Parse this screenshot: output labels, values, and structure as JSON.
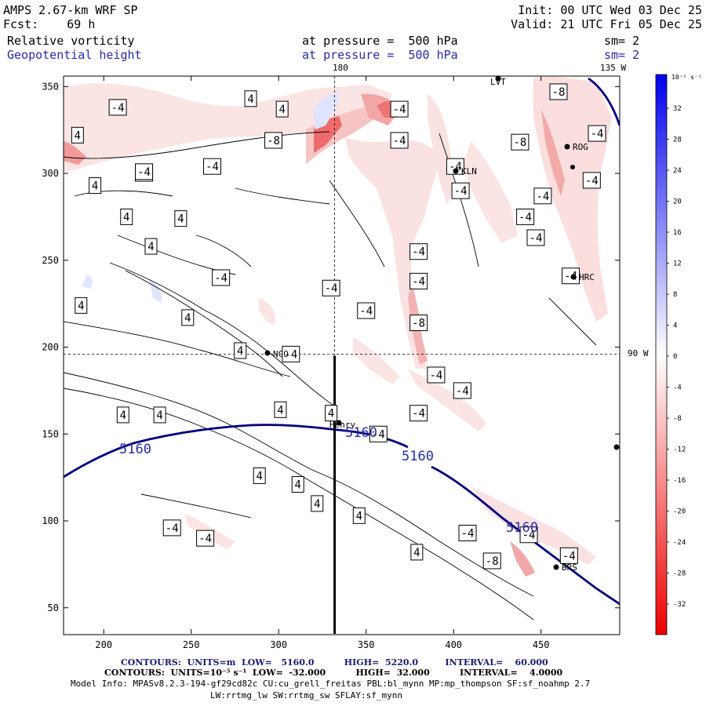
{
  "header": {
    "model": "AMPS 2.67-km WRF SP",
    "forecast": "Fcst:    69 h",
    "init": "Init: 00 UTC Wed 03 Dec 25",
    "valid": "Valid: 21 UTC Fri 05 Dec 25",
    "field1_name": "Relative vorticity",
    "field1_level": "at pressure =  500 hPa",
    "field1_sm": "sm= 2",
    "field2_name": "Geopotential height",
    "field2_level": "at pressure =  500 hPa",
    "field2_sm": "sm= 2"
  },
  "colors": {
    "height_contour": "#000080",
    "label_blue": "#2a2aa8",
    "vort_neg_light": "#fbe0e0",
    "vort_neg_mid": "#f5a8a8",
    "vort_neg_strong": "#ee5c5c",
    "vort_pos_light": "#dfe4ff"
  },
  "map_labels": {
    "lon_180": "180",
    "lon_135w": "135 W",
    "lon_90w": "90 W"
  },
  "stations": [
    {
      "name": "LVT"
    },
    {
      "name": "KLN"
    },
    {
      "name": "ROG"
    },
    {
      "name": "HRC"
    },
    {
      "name": "NCO"
    },
    {
      "name": "Henry"
    },
    {
      "name": "BRS"
    }
  ],
  "chart_data": {
    "type": "contour",
    "title": "Relative vorticity and Geopotential height at 500 hPa",
    "xaxis": {
      "ticks": [
        200,
        250,
        300,
        350,
        400,
        450
      ],
      "range": [
        177,
        495
      ]
    },
    "yaxis": {
      "ticks": [
        50,
        100,
        150,
        200,
        250,
        300,
        350
      ],
      "range": [
        35,
        356
      ]
    },
    "colorbar": {
      "units": "10⁻⁵ s⁻¹",
      "ticks": [
        "32",
        "28",
        "24",
        "20",
        "16",
        "12",
        "8",
        "4",
        "0",
        "-4",
        "-8",
        "-12",
        "-16",
        "-20",
        "-24",
        "-28",
        "-32"
      ]
    },
    "height_contour_labels": [
      "5160",
      "5160",
      "5160",
      "5160"
    ],
    "vorticity_contour_labels": [
      {
        "label": "-4",
        "x": 208,
        "y": 338
      },
      {
        "label": "4",
        "x": 185,
        "y": 322
      },
      {
        "label": "4",
        "x": 195,
        "y": 293
      },
      {
        "label": "-4",
        "x": 223,
        "y": 300
      },
      {
        "label": "4",
        "x": 284,
        "y": 343
      },
      {
        "label": "4",
        "x": 302,
        "y": 337
      },
      {
        "label": "-8",
        "x": 297,
        "y": 319
      },
      {
        "label": "-4",
        "x": 262,
        "y": 304
      },
      {
        "label": "-4",
        "x": 223,
        "y": 301
      },
      {
        "label": "-4",
        "x": 369,
        "y": 337
      },
      {
        "label": "-4",
        "x": 369,
        "y": 319
      },
      {
        "label": "-4",
        "x": 401,
        "y": 304
      },
      {
        "label": "-4",
        "x": 404,
        "y": 290
      },
      {
        "label": "4",
        "x": 213,
        "y": 275
      },
      {
        "label": "4",
        "x": 244,
        "y": 274
      },
      {
        "label": "4",
        "x": 227,
        "y": 258
      },
      {
        "label": "-4",
        "x": 267,
        "y": 240
      },
      {
        "label": "-4",
        "x": 380,
        "y": 255
      },
      {
        "label": "-4",
        "x": 380,
        "y": 238
      },
      {
        "label": "-4",
        "x": 330,
        "y": 234
      },
      {
        "label": "-4",
        "x": 350,
        "y": 221
      },
      {
        "label": "-8",
        "x": 380,
        "y": 214
      },
      {
        "label": "4",
        "x": 187,
        "y": 224
      },
      {
        "label": "4",
        "x": 248,
        "y": 217
      },
      {
        "label": "4",
        "x": 278,
        "y": 198
      },
      {
        "label": "-4",
        "x": 307,
        "y": 196
      },
      {
        "label": "-4",
        "x": 390,
        "y": 184
      },
      {
        "label": "-4",
        "x": 405,
        "y": 175
      },
      {
        "label": "-4",
        "x": 380,
        "y": 162
      },
      {
        "label": "4",
        "x": 301,
        "y": 164
      },
      {
        "label": "4",
        "x": 211,
        "y": 161
      },
      {
        "label": "4",
        "x": 232,
        "y": 161
      },
      {
        "label": "4",
        "x": 330,
        "y": 162
      },
      {
        "label": "-4",
        "x": 357,
        "y": 150
      },
      {
        "label": "4",
        "x": 289,
        "y": 126
      },
      {
        "label": "4",
        "x": 311,
        "y": 121
      },
      {
        "label": "4",
        "x": 322,
        "y": 110
      },
      {
        "label": "4",
        "x": 346,
        "y": 103
      },
      {
        "label": "4",
        "x": 379,
        "y": 82
      },
      {
        "label": "-4",
        "x": 239,
        "y": 96
      },
      {
        "label": "-4",
        "x": 258,
        "y": 90
      },
      {
        "label": "-4",
        "x": 408,
        "y": 93
      },
      {
        "label": "-8",
        "x": 422,
        "y": 77
      },
      {
        "label": "-4",
        "x": 443,
        "y": 92
      },
      {
        "label": "-4",
        "x": 466,
        "y": 80
      },
      {
        "label": "-4",
        "x": 479,
        "y": 296
      },
      {
        "label": "-4",
        "x": 451,
        "y": 287
      },
      {
        "label": "-4",
        "x": 441,
        "y": 275
      },
      {
        "label": "-4",
        "x": 447,
        "y": 263
      },
      {
        "label": "-4",
        "x": 467,
        "y": 241
      },
      {
        "label": "-8",
        "x": 460,
        "y": 347
      },
      {
        "label": "-8",
        "x": 438,
        "y": 318
      },
      {
        "label": "-4",
        "x": 482,
        "y": 323
      }
    ],
    "cross_section": {
      "x": 332,
      "y_from": 35,
      "y_to": 195
    },
    "reference_lines": {
      "x": 332,
      "y": 196
    }
  },
  "footer": {
    "contours_height": "CONTOURS:  UNITS=m  LOW=   5160.0          HIGH=  5220.0         INTERVAL=    60.000",
    "contours_vort": "CONTOURS:  UNITS=10⁻⁵ s⁻¹  LOW=  -32.000          HIGH=  32.000          INTERVAL=    4.0000",
    "model_info": "Model Info: MPASv8.2.3-194-gf29cd82c CU:cu_grell_freitas PBL:bl_mynn MP:mp_thompson SF:sf_noahmp 2.7",
    "model_info2": "LW:rrtmg_lw SW:rrtmg_sw SFLAY:sf_mynn"
  }
}
